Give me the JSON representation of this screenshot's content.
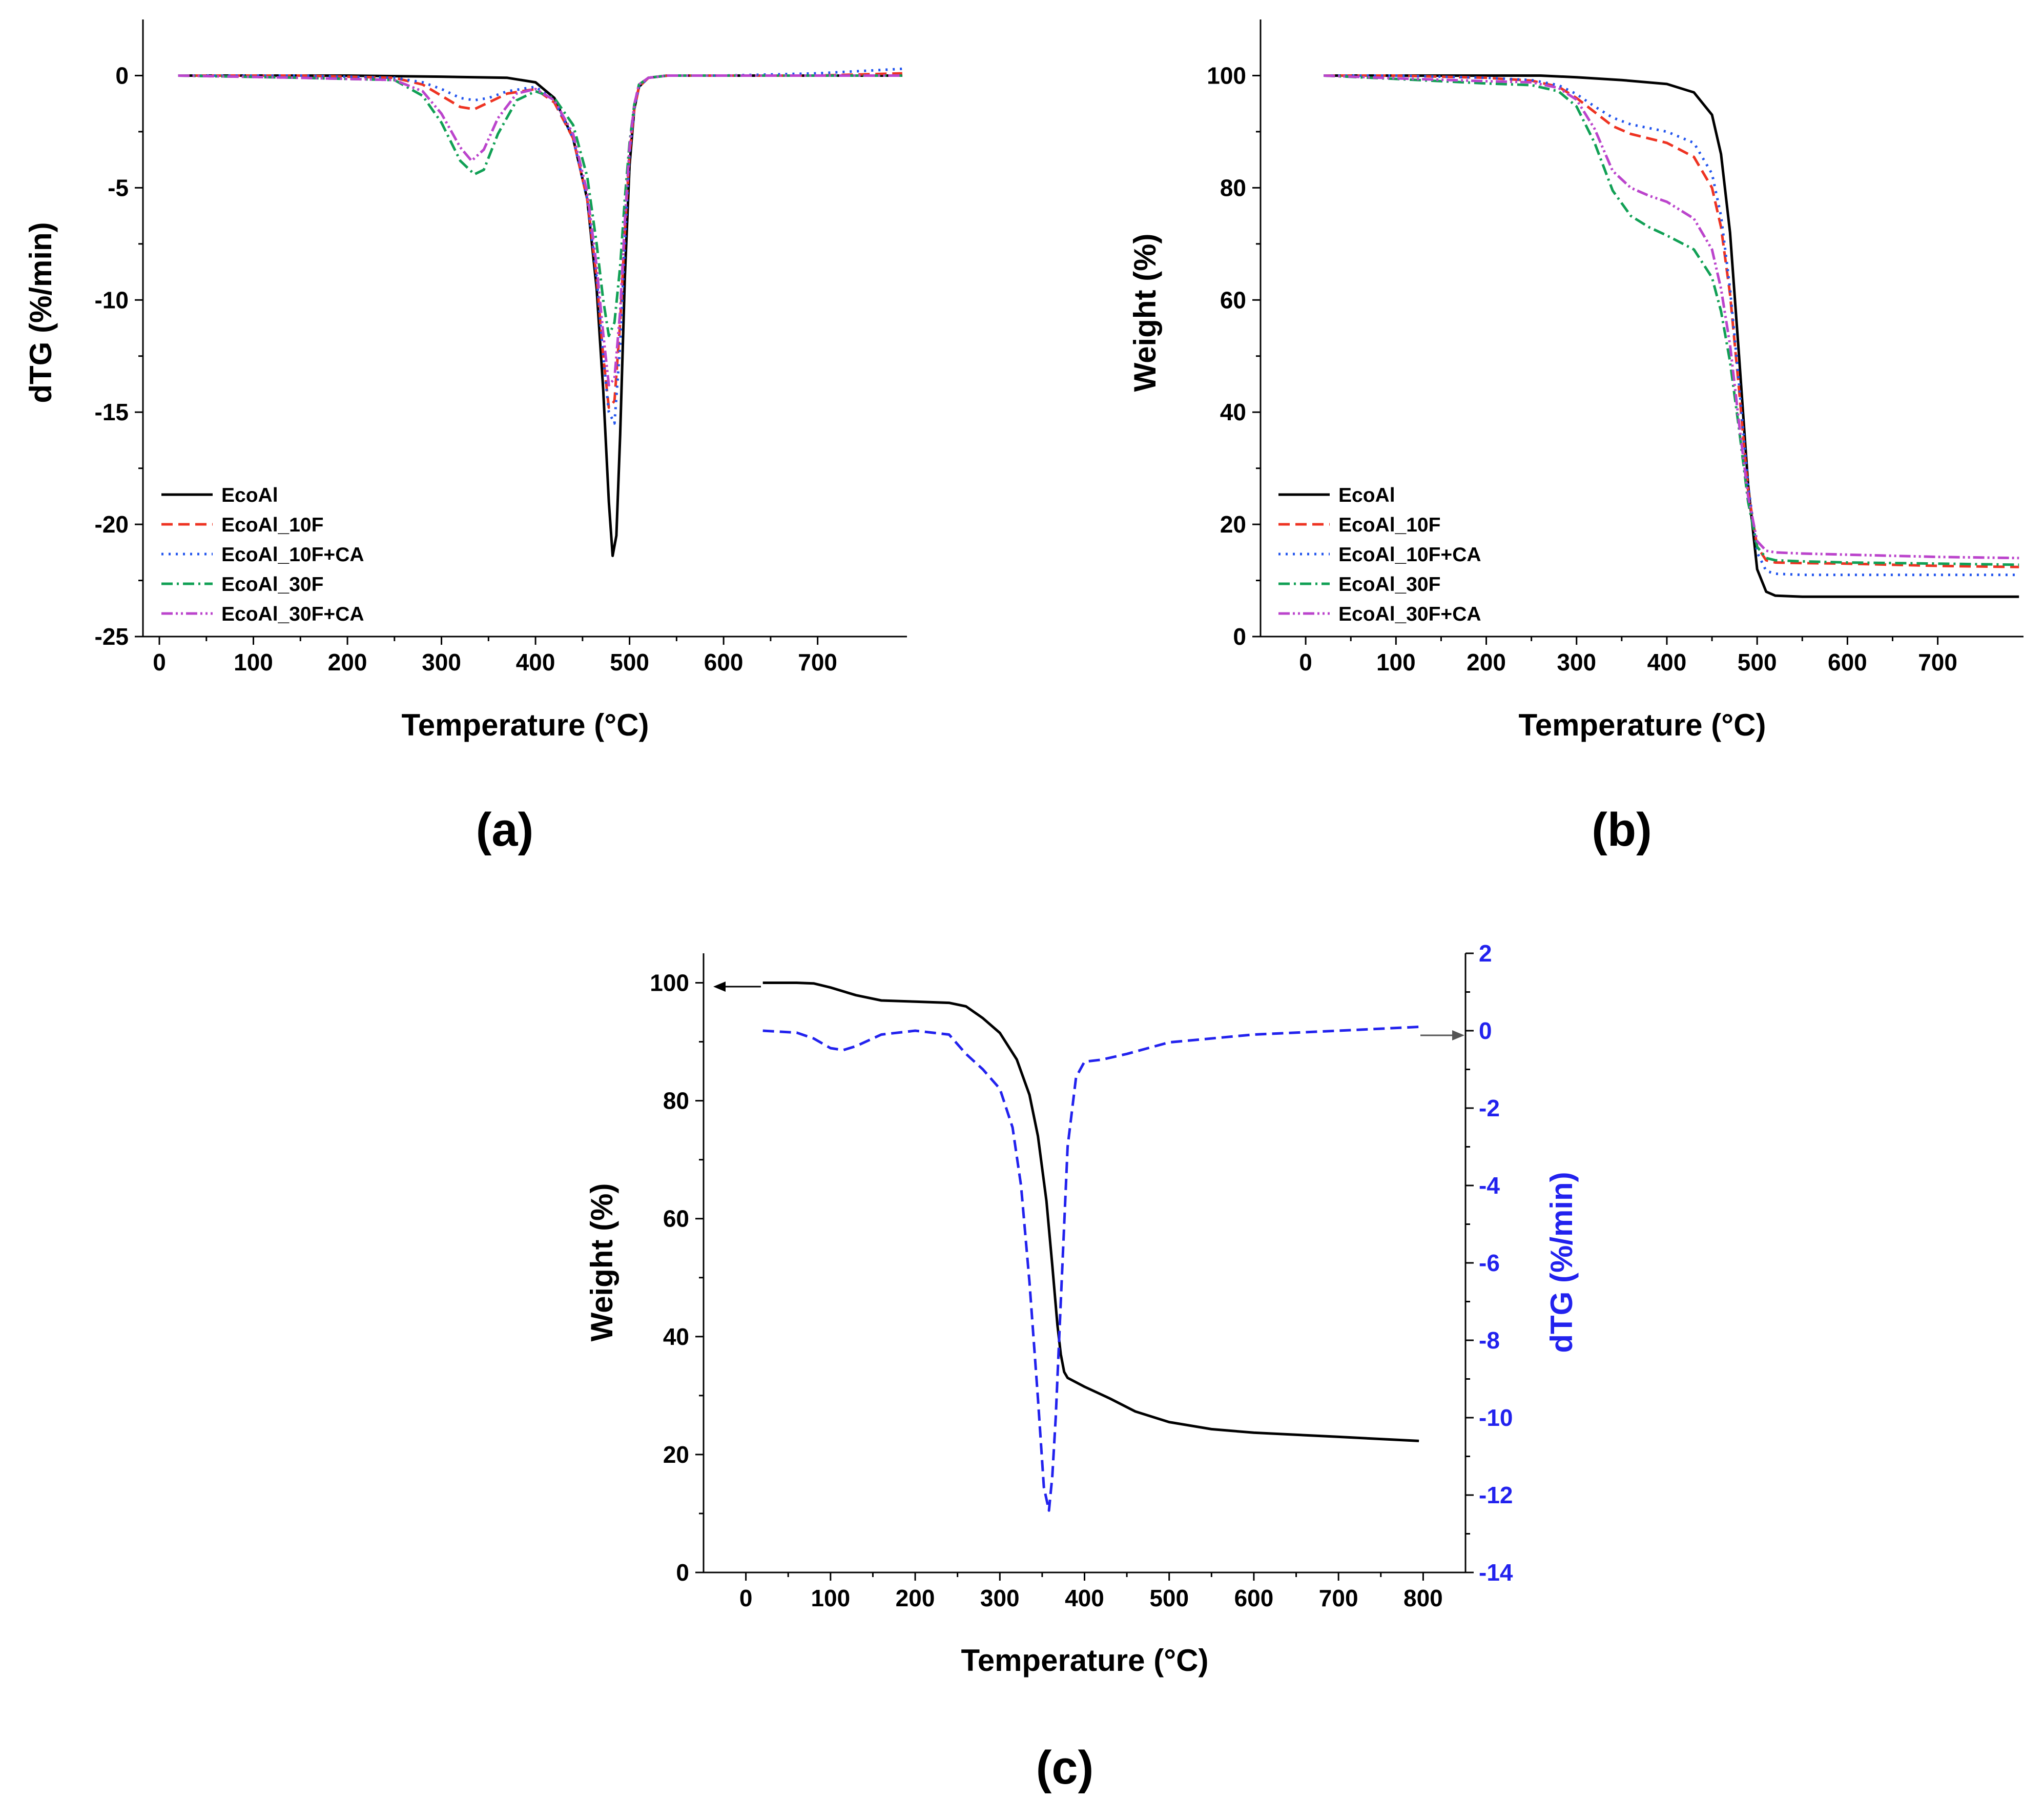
{
  "figure": {
    "panel_labels": [
      "(a)",
      "(b)",
      "(c)"
    ]
  },
  "chart_data": [
    {
      "id": "a",
      "type": "line",
      "panel_label": "(a)",
      "xlabel": "Temperature (°C)",
      "ylabel": "dTG (%/min)",
      "xlim": [
        0,
        795
      ],
      "ylim": [
        -25,
        2.5
      ],
      "xticks": [
        0,
        100,
        200,
        300,
        400,
        500,
        600,
        700
      ],
      "yticks": [
        0,
        -5,
        -10,
        -15,
        -20,
        -25
      ],
      "legend_position": "bottom-left",
      "series": [
        {
          "name": "EcoAl",
          "color": "#000000",
          "dash": "solid",
          "x": [
            20,
            200,
            300,
            370,
            400,
            420,
            440,
            455,
            465,
            472,
            478,
            482,
            486,
            490,
            495,
            500,
            505,
            510,
            520,
            540,
            600,
            700,
            790
          ],
          "y": [
            0,
            0,
            -0.05,
            -0.1,
            -0.3,
            -1,
            -2.8,
            -5.5,
            -9.5,
            -14,
            -19,
            -21.4,
            -20.5,
            -16,
            -9,
            -4,
            -1.5,
            -0.5,
            -0.1,
            0,
            0,
            0,
            0
          ]
        },
        {
          "name": "EcoAl_10F",
          "color": "#ee3322",
          "dash": "dashed",
          "x": [
            20,
            150,
            250,
            280,
            300,
            320,
            335,
            350,
            370,
            400,
            420,
            440,
            455,
            465,
            472,
            478,
            484,
            490,
            495,
            500,
            505,
            510,
            520,
            540,
            600,
            700,
            790
          ],
          "y": [
            0,
            0,
            -0.1,
            -0.4,
            -0.9,
            -1.4,
            -1.5,
            -1.2,
            -0.8,
            -0.6,
            -1.2,
            -2.8,
            -5.5,
            -9,
            -12.5,
            -14.8,
            -14.5,
            -11,
            -7,
            -3.5,
            -1.5,
            -0.5,
            -0.1,
            0,
            0,
            0,
            0.1
          ]
        },
        {
          "name": "EcoAl_10F+CA",
          "color": "#2255ee",
          "dash": "dotted",
          "x": [
            20,
            150,
            250,
            280,
            300,
            320,
            335,
            350,
            370,
            400,
            420,
            440,
            455,
            465,
            472,
            478,
            484,
            490,
            495,
            500,
            505,
            510,
            520,
            540,
            600,
            700,
            790
          ],
          "y": [
            0,
            0,
            -0.1,
            -0.3,
            -0.6,
            -1.0,
            -1.1,
            -1.0,
            -0.7,
            -0.5,
            -1.1,
            -2.8,
            -5.5,
            -9,
            -12.5,
            -15,
            -15.5,
            -12,
            -7.5,
            -3.5,
            -1.5,
            -0.5,
            -0.1,
            0,
            0,
            0.1,
            0.3
          ]
        },
        {
          "name": "EcoAl_30F",
          "color": "#11a055",
          "dash": "dashdot",
          "x": [
            20,
            150,
            250,
            280,
            300,
            320,
            335,
            345,
            360,
            380,
            400,
            420,
            440,
            455,
            465,
            472,
            478,
            484,
            490,
            495,
            500,
            505,
            510,
            520,
            540,
            600,
            700,
            790
          ],
          "y": [
            0,
            -0.1,
            -0.2,
            -0.9,
            -2.1,
            -3.8,
            -4.4,
            -4.2,
            -2.6,
            -1.1,
            -0.7,
            -1.0,
            -2.2,
            -4.5,
            -7.5,
            -10,
            -11.6,
            -11,
            -8.5,
            -5.5,
            -3,
            -1.3,
            -0.4,
            -0.1,
            0,
            0,
            0,
            0
          ]
        },
        {
          "name": "EcoAl_30F+CA",
          "color": "#bb44cc",
          "dash": "dashdotdot",
          "x": [
            20,
            150,
            250,
            280,
            300,
            320,
            332,
            345,
            360,
            380,
            400,
            420,
            440,
            455,
            465,
            472,
            478,
            484,
            490,
            495,
            500,
            505,
            510,
            520,
            540,
            600,
            700,
            790
          ],
          "y": [
            0,
            -0.1,
            -0.2,
            -0.7,
            -1.7,
            -3.2,
            -3.8,
            -3.3,
            -1.9,
            -0.8,
            -0.6,
            -1.1,
            -2.6,
            -5.2,
            -8.5,
            -11.5,
            -13.8,
            -13.5,
            -10.5,
            -6.5,
            -3.2,
            -1.3,
            -0.4,
            -0.1,
            0,
            0,
            0,
            0
          ]
        }
      ]
    },
    {
      "id": "b",
      "type": "line",
      "panel_label": "(b)",
      "xlabel": "Temperature (°C)",
      "ylabel": "Weight (%)",
      "xlim": [
        -50,
        795
      ],
      "ylim": [
        0,
        110
      ],
      "xticks": [
        0,
        100,
        200,
        300,
        400,
        500,
        600,
        700
      ],
      "yticks": [
        0,
        20,
        40,
        60,
        80,
        100
      ],
      "legend_position": "bottom-left",
      "series": [
        {
          "name": "EcoAl",
          "color": "#000000",
          "dash": "solid",
          "x": [
            20,
            100,
            200,
            260,
            300,
            350,
            400,
            430,
            450,
            460,
            470,
            480,
            490,
            500,
            510,
            520,
            550,
            600,
            700,
            790
          ],
          "y": [
            100,
            100,
            100,
            100,
            99.7,
            99.2,
            98.5,
            97,
            93,
            86,
            72,
            50,
            27,
            12,
            8,
            7.3,
            7.1,
            7.1,
            7.1,
            7.1
          ]
        },
        {
          "name": "EcoAl_10F",
          "color": "#ee3322",
          "dash": "dashed",
          "x": [
            20,
            100,
            200,
            250,
            280,
            300,
            320,
            340,
            360,
            400,
            430,
            450,
            460,
            470,
            480,
            490,
            500,
            510,
            520,
            550,
            600,
            700,
            790
          ],
          "y": [
            100,
            100,
            99.6,
            99.1,
            98,
            96,
            93.5,
            91,
            89.6,
            88,
            85.5,
            80,
            73,
            61,
            44,
            26,
            16,
            13.6,
            13.2,
            13.1,
            13,
            12.6,
            12.4
          ]
        },
        {
          "name": "EcoAl_10F+CA",
          "color": "#2255ee",
          "dash": "dotted",
          "x": [
            20,
            100,
            200,
            250,
            280,
            300,
            320,
            340,
            360,
            400,
            430,
            450,
            460,
            470,
            480,
            490,
            500,
            510,
            520,
            550,
            600,
            700,
            790
          ],
          "y": [
            100,
            100,
            99.6,
            99.2,
            98.3,
            96.7,
            94.5,
            92.5,
            91.3,
            90,
            88,
            82.5,
            75,
            62,
            45,
            27,
            15,
            11.7,
            11.2,
            11,
            11,
            11,
            11
          ]
        },
        {
          "name": "EcoAl_30F",
          "color": "#11a055",
          "dash": "dashdot",
          "x": [
            20,
            100,
            200,
            250,
            280,
            300,
            320,
            340,
            360,
            380,
            400,
            430,
            450,
            460,
            470,
            480,
            490,
            500,
            510,
            520,
            550,
            600,
            700,
            790
          ],
          "y": [
            100,
            99.4,
            98.6,
            98.3,
            97.2,
            94.5,
            88,
            79.5,
            75,
            73,
            71.5,
            69,
            64,
            58,
            49,
            37,
            24,
            16,
            14,
            13.6,
            13.4,
            13.2,
            13,
            12.8
          ]
        },
        {
          "name": "EcoAl_30F+CA",
          "color": "#bb44cc",
          "dash": "dashdotdot",
          "x": [
            20,
            100,
            200,
            250,
            280,
            300,
            320,
            340,
            360,
            380,
            400,
            430,
            450,
            460,
            470,
            480,
            490,
            500,
            510,
            520,
            550,
            600,
            700,
            790
          ],
          "y": [
            100,
            99.5,
            99,
            98.8,
            97.8,
            95.7,
            90.5,
            83,
            80,
            78.6,
            77.5,
            74.5,
            69,
            62,
            52,
            38,
            25,
            17,
            15.3,
            15,
            14.8,
            14.6,
            14.2,
            14
          ]
        }
      ]
    },
    {
      "id": "c",
      "type": "line",
      "panel_label": "(c)",
      "xlabel": "Temperature (°C)",
      "ylabel": "Weight (%)",
      "y2label": "dTG (%/min)",
      "xlim": [
        -50,
        850
      ],
      "ylim": [
        0,
        105
      ],
      "y2lim": [
        -14,
        2
      ],
      "xticks": [
        0,
        100,
        200,
        300,
        400,
        500,
        600,
        700,
        800
      ],
      "yticks": [
        0,
        20,
        40,
        60,
        80,
        100
      ],
      "y2ticks": [
        2,
        0,
        -2,
        -4,
        -6,
        -8,
        -10,
        -12,
        -14
      ],
      "annotations": [
        "arrow pointing left to Weight axis",
        "arrow pointing right to dTG axis"
      ],
      "series": [
        {
          "name": "Weight",
          "axis": "left",
          "color": "#000000",
          "dash": "solid",
          "x": [
            20,
            60,
            80,
            100,
            130,
            160,
            200,
            240,
            260,
            280,
            300,
            320,
            335,
            345,
            355,
            362,
            368,
            372,
            376,
            380,
            400,
            430,
            460,
            500,
            550,
            600,
            700,
            795
          ],
          "y": [
            100,
            100,
            99.9,
            99.2,
            97.9,
            97,
            96.8,
            96.6,
            96,
            94,
            91.5,
            87,
            81,
            74,
            63,
            52,
            42,
            37,
            34,
            33,
            31.5,
            29.5,
            27.3,
            25.5,
            24.3,
            23.7,
            23,
            22.3
          ]
        },
        {
          "name": "dTG",
          "axis": "right",
          "color": "#2222ee",
          "dash": "dashed",
          "x": [
            20,
            60,
            80,
            100,
            115,
            130,
            160,
            200,
            240,
            260,
            280,
            300,
            315,
            325,
            335,
            345,
            352,
            358,
            362,
            366,
            370,
            375,
            380,
            390,
            400,
            420,
            450,
            500,
            600,
            700,
            795
          ],
          "y": [
            0,
            -0.05,
            -0.2,
            -0.45,
            -0.5,
            -0.4,
            -0.1,
            0,
            -0.1,
            -0.6,
            -1.0,
            -1.5,
            -2.5,
            -4,
            -6.5,
            -9.5,
            -11.8,
            -12.4,
            -11.5,
            -10,
            -8,
            -5.5,
            -3,
            -1.2,
            -0.8,
            -0.75,
            -0.6,
            -0.3,
            -0.1,
            0,
            0.1
          ]
        }
      ]
    }
  ]
}
